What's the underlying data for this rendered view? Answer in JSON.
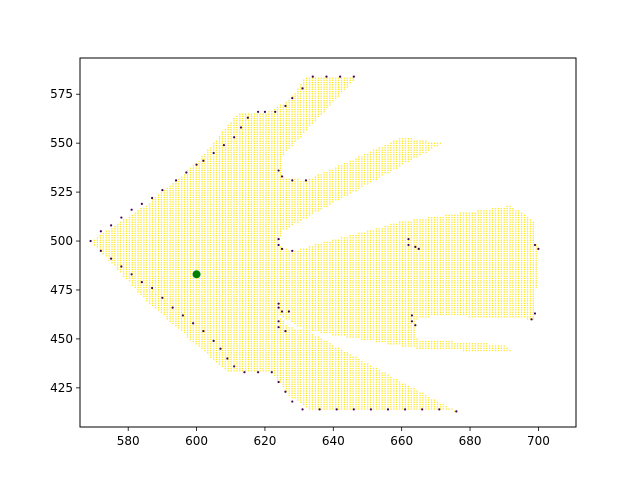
{
  "chart_data": {
    "type": "scatter",
    "title": "",
    "xlabel": "",
    "ylabel": "",
    "xlim": [
      565.9,
      711.0
    ],
    "ylim": [
      405.0,
      593.5
    ],
    "x_ticks": [
      580,
      600,
      620,
      640,
      660,
      680,
      700
    ],
    "y_ticks": [
      425,
      450,
      475,
      500,
      525,
      550,
      575
    ],
    "x_tick_labels": [
      "580",
      "600",
      "620",
      "640",
      "660",
      "680",
      "700"
    ],
    "y_tick_labels": [
      "425",
      "450",
      "475",
      "500",
      "525",
      "550",
      "575"
    ],
    "grid": false,
    "legend": "none",
    "colors": {
      "interior": "#fde725",
      "boundary": "#440154",
      "marker": "#008000"
    },
    "series": [
      {
        "role": "interior-points",
        "region_outline": [
          [
            569,
            500
          ],
          [
            585,
            518
          ],
          [
            600,
            540
          ],
          [
            612,
            565
          ],
          [
            621,
            566
          ],
          [
            627,
            572
          ],
          [
            632,
            584
          ],
          [
            647,
            584
          ],
          [
            625,
            543
          ],
          [
            625,
            533
          ],
          [
            632,
            531
          ],
          [
            660,
            553
          ],
          [
            672,
            550
          ],
          [
            625,
            505
          ],
          [
            624,
            498
          ],
          [
            628,
            495
          ],
          [
            660,
            510
          ],
          [
            692,
            518
          ],
          [
            699,
            510
          ],
          [
            699,
            500
          ],
          [
            700,
            497
          ],
          [
            699,
            465
          ],
          [
            699,
            460
          ],
          [
            670,
            462
          ],
          [
            664,
            460
          ],
          [
            664,
            450
          ],
          [
            690,
            447
          ],
          [
            693,
            443
          ],
          [
            665,
            445
          ],
          [
            640,
            452
          ],
          [
            627,
            456
          ],
          [
            624,
            462
          ],
          [
            640,
            447
          ],
          [
            676,
            413
          ],
          [
            662,
            414
          ],
          [
            633,
            414
          ],
          [
            627,
            421
          ],
          [
            622,
            433
          ],
          [
            609,
            433
          ],
          [
            598,
            450
          ],
          [
            585,
            470
          ],
          [
            569,
            500
          ]
        ]
      },
      {
        "role": "boundary-points",
        "points": [
          [
            569,
            500
          ],
          [
            572,
            505
          ],
          [
            575,
            508
          ],
          [
            578,
            512
          ],
          [
            581,
            516
          ],
          [
            584,
            519
          ],
          [
            587,
            522
          ],
          [
            590,
            526
          ],
          [
            594,
            531
          ],
          [
            597,
            535
          ],
          [
            600,
            539
          ],
          [
            602,
            541
          ],
          [
            605,
            545
          ],
          [
            608,
            549
          ],
          [
            611,
            553
          ],
          [
            613,
            558
          ],
          [
            615,
            563
          ],
          [
            618,
            566
          ],
          [
            620,
            566
          ],
          [
            623,
            566
          ],
          [
            626,
            569
          ],
          [
            628,
            573
          ],
          [
            631,
            578
          ],
          [
            634,
            584
          ],
          [
            638,
            584
          ],
          [
            642,
            584
          ],
          [
            646,
            584
          ],
          [
            572,
            495
          ],
          [
            575,
            491
          ],
          [
            578,
            487
          ],
          [
            581,
            483
          ],
          [
            584,
            479
          ],
          [
            587,
            476
          ],
          [
            590,
            471
          ],
          [
            593,
            466
          ],
          [
            596,
            462
          ],
          [
            599,
            458
          ],
          [
            602,
            454
          ],
          [
            605,
            449
          ],
          [
            607,
            445
          ],
          [
            609,
            440
          ],
          [
            611,
            436
          ],
          [
            614,
            433
          ],
          [
            618,
            433
          ],
          [
            622,
            433
          ],
          [
            624,
            428
          ],
          [
            626,
            423
          ],
          [
            628,
            418
          ],
          [
            631,
            414
          ],
          [
            636,
            414
          ],
          [
            641,
            414
          ],
          [
            646,
            414
          ],
          [
            651,
            414
          ],
          [
            656,
            414
          ],
          [
            661,
            414
          ],
          [
            666,
            414
          ],
          [
            671,
            414
          ],
          [
            676,
            413
          ],
          [
            624,
            536
          ],
          [
            625,
            533
          ],
          [
            628,
            531
          ],
          [
            632,
            531
          ],
          [
            624,
            501
          ],
          [
            624,
            498
          ],
          [
            625,
            496
          ],
          [
            628,
            495
          ],
          [
            624,
            468
          ],
          [
            624,
            466
          ],
          [
            625,
            464
          ],
          [
            627,
            464
          ],
          [
            624,
            459
          ],
          [
            624,
            456
          ],
          [
            626,
            454
          ],
          [
            662,
            501
          ],
          [
            662,
            498
          ],
          [
            664,
            497
          ],
          [
            665,
            496
          ],
          [
            663,
            462
          ],
          [
            663,
            459
          ],
          [
            664,
            457
          ],
          [
            699,
            498
          ],
          [
            700,
            496
          ],
          [
            699,
            463
          ],
          [
            698,
            460
          ]
        ]
      },
      {
        "role": "highlight",
        "points": [
          [
            600,
            483
          ]
        ]
      }
    ]
  }
}
